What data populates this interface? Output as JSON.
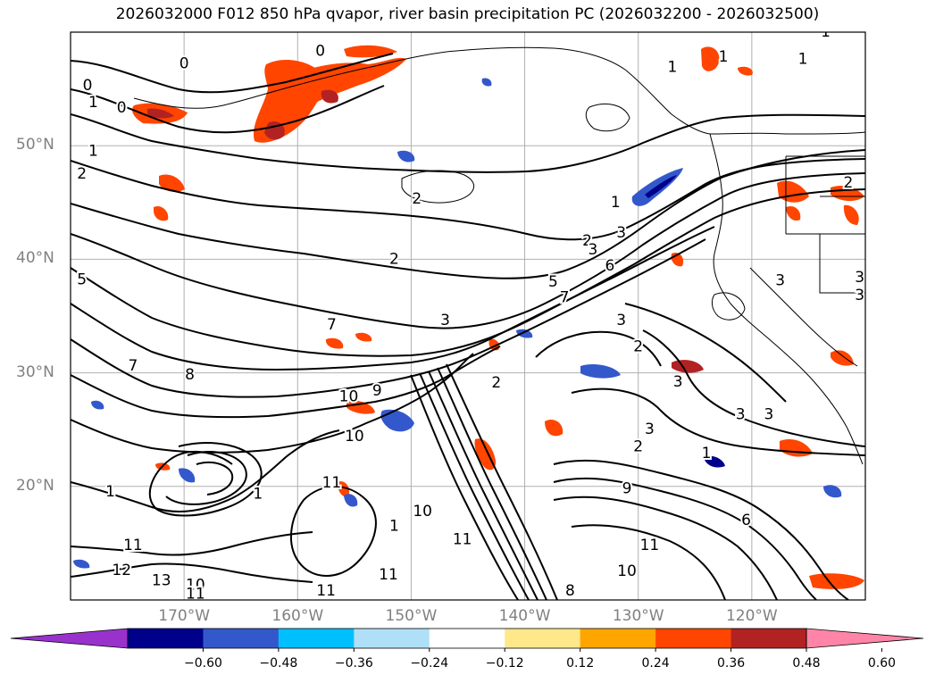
{
  "title": "2026032000 F012 850 hPa qvapor, river basin precipitation PC (2026032200 - 2026032500)",
  "map": {
    "extent": {
      "lon_min": -180,
      "lon_max": -110,
      "lat_min": 10,
      "lat_max": 60
    },
    "lat_labels": [
      {
        "lat": 50,
        "text": "50°N"
      },
      {
        "lat": 40,
        "text": "40°N"
      },
      {
        "lat": 30,
        "text": "30°N"
      },
      {
        "lat": 20,
        "text": "20°N"
      }
    ],
    "lon_labels": [
      {
        "lon": -170,
        "text": "170°W"
      },
      {
        "lon": -160,
        "text": "160°W"
      },
      {
        "lon": -150,
        "text": "150°W"
      },
      {
        "lon": -140,
        "text": "140°W"
      },
      {
        "lon": -130,
        "text": "130°W"
      },
      {
        "lon": -120,
        "text": "120°W"
      }
    ],
    "contour_labels": [
      {
        "lon": -178.5,
        "lat": 55.3,
        "text": "0"
      },
      {
        "lon": -170,
        "lat": 57.2,
        "text": "0"
      },
      {
        "lon": -158,
        "lat": 58.3,
        "text": "0"
      },
      {
        "lon": -178,
        "lat": 53.8,
        "text": "1"
      },
      {
        "lon": -175.5,
        "lat": 53.3,
        "text": "0"
      },
      {
        "lon": -178,
        "lat": 49.5,
        "text": "1"
      },
      {
        "lon": -179,
        "lat": 47.5,
        "text": "2"
      },
      {
        "lon": -179,
        "lat": 38.2,
        "text": "5"
      },
      {
        "lon": -174.5,
        "lat": 30.6,
        "text": "7"
      },
      {
        "lon": -169.5,
        "lat": 29.8,
        "text": "8"
      },
      {
        "lon": -157,
        "lat": 34.2,
        "text": "7"
      },
      {
        "lon": -149.5,
        "lat": 45.3,
        "text": "2"
      },
      {
        "lon": -151.5,
        "lat": 40.0,
        "text": "2"
      },
      {
        "lon": -134.5,
        "lat": 41.6,
        "text": "2"
      },
      {
        "lon": -131.5,
        "lat": 42.3,
        "text": "3"
      },
      {
        "lon": -134,
        "lat": 40.8,
        "text": "3"
      },
      {
        "lon": -132.5,
        "lat": 39.4,
        "text": "6"
      },
      {
        "lon": -137.5,
        "lat": 38.0,
        "text": "5"
      },
      {
        "lon": -136.5,
        "lat": 36.6,
        "text": "7"
      },
      {
        "lon": -147,
        "lat": 34.6,
        "text": "3"
      },
      {
        "lon": -131.5,
        "lat": 34.6,
        "text": "3"
      },
      {
        "lon": -130,
        "lat": 32.3,
        "text": "2"
      },
      {
        "lon": -142.5,
        "lat": 29.1,
        "text": "2"
      },
      {
        "lon": -126.5,
        "lat": 29.2,
        "text": "3"
      },
      {
        "lon": -129,
        "lat": 25.0,
        "text": "3"
      },
      {
        "lon": -130,
        "lat": 23.5,
        "text": "2"
      },
      {
        "lon": -121,
        "lat": 26.3,
        "text": "3"
      },
      {
        "lon": -118.5,
        "lat": 26.3,
        "text": "3"
      },
      {
        "lon": -124,
        "lat": 22.9,
        "text": "1"
      },
      {
        "lon": -127,
        "lat": 56.9,
        "text": "1"
      },
      {
        "lon": -122.5,
        "lat": 57.8,
        "text": "1"
      },
      {
        "lon": -115.5,
        "lat": 57.6,
        "text": "1"
      },
      {
        "lon": -113.5,
        "lat": 60.0,
        "text": "1"
      },
      {
        "lon": -111.5,
        "lat": 46.7,
        "text": "2"
      },
      {
        "lon": -117.5,
        "lat": 38.1,
        "text": "3"
      },
      {
        "lon": -110.5,
        "lat": 38.4,
        "text": "3"
      },
      {
        "lon": -110.5,
        "lat": 36.8,
        "text": "3"
      },
      {
        "lon": -132,
        "lat": 45.0,
        "text": "1"
      },
      {
        "lon": -155.5,
        "lat": 27.9,
        "text": "10"
      },
      {
        "lon": -153,
        "lat": 28.4,
        "text": "9"
      },
      {
        "lon": -155,
        "lat": 24.4,
        "text": "10"
      },
      {
        "lon": -157,
        "lat": 20.3,
        "text": "11"
      },
      {
        "lon": -149,
        "lat": 17.8,
        "text": "10"
      },
      {
        "lon": -151.5,
        "lat": 16.5,
        "text": "1"
      },
      {
        "lon": -145.5,
        "lat": 15.3,
        "text": "11"
      },
      {
        "lon": -131,
        "lat": 19.8,
        "text": "9"
      },
      {
        "lon": -129,
        "lat": 14.8,
        "text": "11"
      },
      {
        "lon": -174.5,
        "lat": 14.8,
        "text": "11"
      },
      {
        "lon": -176.5,
        "lat": 19.5,
        "text": "1"
      },
      {
        "lon": -175.5,
        "lat": 12.6,
        "text": "12"
      },
      {
        "lon": -172,
        "lat": 11.7,
        "text": "13"
      },
      {
        "lon": -169,
        "lat": 11.3,
        "text": "10"
      },
      {
        "lon": -163.5,
        "lat": 19.3,
        "text": "1"
      },
      {
        "lon": -157.5,
        "lat": 10.8,
        "text": "11"
      },
      {
        "lon": -152,
        "lat": 12.2,
        "text": "11"
      },
      {
        "lon": -169,
        "lat": 10.5,
        "text": "11"
      },
      {
        "lon": -131,
        "lat": 12.5,
        "text": "10"
      },
      {
        "lon": -136,
        "lat": 10.8,
        "text": "8"
      },
      {
        "lon": -120.5,
        "lat": 17.0,
        "text": "6"
      }
    ]
  },
  "colorbar": {
    "colors": [
      "#9932cc",
      "#00008b",
      "#3358cc",
      "#00bfff",
      "#b0e0f8",
      "#ffffff",
      "#ffe88a",
      "#ffa500",
      "#ff4500",
      "#b22222",
      "#ff85a8"
    ],
    "ticks": [
      "−0.60",
      "−0.48",
      "−0.36",
      "−0.24",
      "−0.12",
      "0.12",
      "0.24",
      "0.36",
      "0.48",
      "0.60"
    ]
  }
}
